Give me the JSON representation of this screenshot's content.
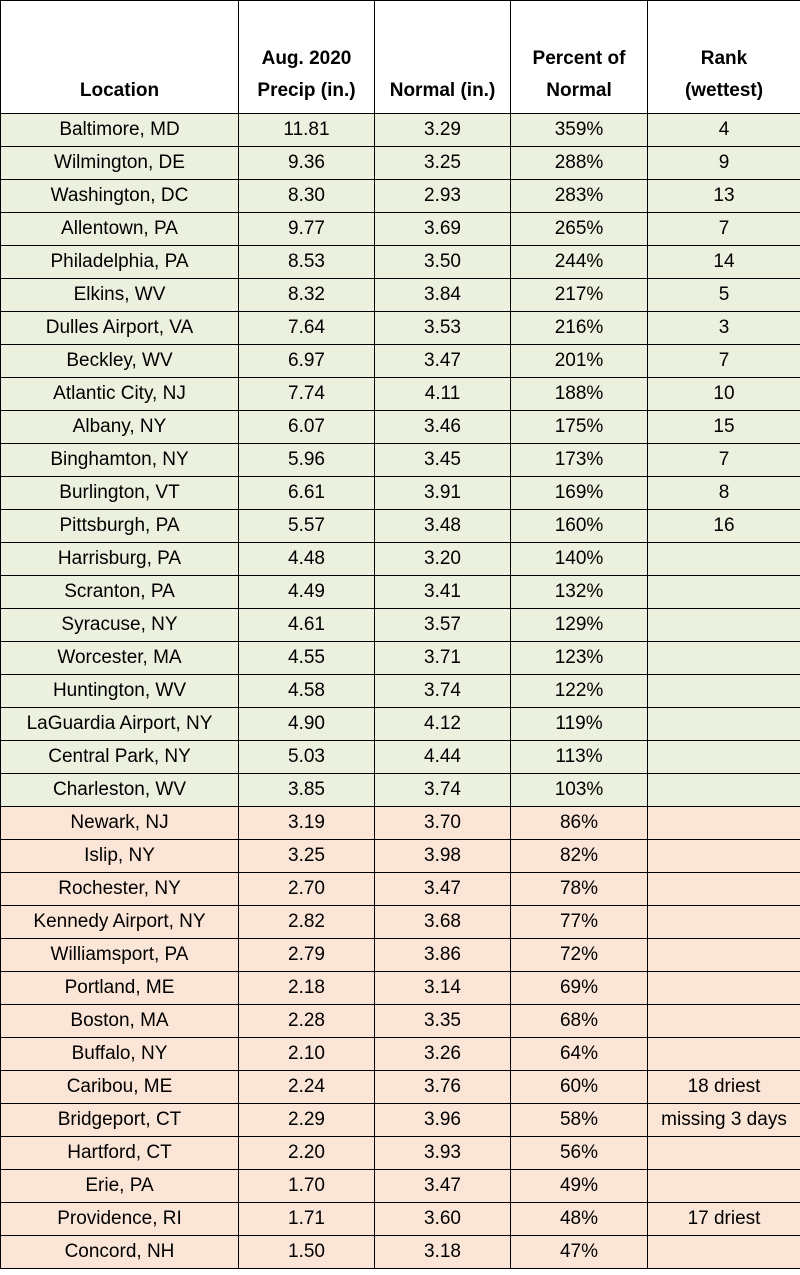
{
  "table": {
    "header": [
      [
        "Location"
      ],
      [
        "Aug. 2020",
        "Precip (in.)"
      ],
      [
        "Normal (in.)"
      ],
      [
        "Percent of",
        "Normal"
      ],
      [
        "Rank",
        "(wettest)"
      ]
    ],
    "above_normal_rows": [
      [
        "Baltimore, MD",
        "11.81",
        "3.29",
        "359%",
        "4"
      ],
      [
        "Wilmington, DE",
        "9.36",
        "3.25",
        "288%",
        "9"
      ],
      [
        "Washington, DC",
        "8.30",
        "2.93",
        "283%",
        "13"
      ],
      [
        "Allentown, PA",
        "9.77",
        "3.69",
        "265%",
        "7"
      ],
      [
        "Philadelphia, PA",
        "8.53",
        "3.50",
        "244%",
        "14"
      ],
      [
        "Elkins, WV",
        "8.32",
        "3.84",
        "217%",
        "5"
      ],
      [
        "Dulles Airport, VA",
        "7.64",
        "3.53",
        "216%",
        "3"
      ],
      [
        "Beckley, WV",
        "6.97",
        "3.47",
        "201%",
        "7"
      ],
      [
        "Atlantic City, NJ",
        "7.74",
        "4.11",
        "188%",
        "10"
      ],
      [
        "Albany, NY",
        "6.07",
        "3.46",
        "175%",
        "15"
      ],
      [
        "Binghamton, NY",
        "5.96",
        "3.45",
        "173%",
        "7"
      ],
      [
        "Burlington, VT",
        "6.61",
        "3.91",
        "169%",
        "8"
      ],
      [
        "Pittsburgh, PA",
        "5.57",
        "3.48",
        "160%",
        "16"
      ],
      [
        "Harrisburg, PA",
        "4.48",
        "3.20",
        "140%"
      ],
      [
        "Scranton, PA",
        "4.49",
        "3.41",
        "132%"
      ],
      [
        "Syracuse, NY",
        "4.61",
        "3.57",
        "129%"
      ],
      [
        "Worcester, MA",
        "4.55",
        "3.71",
        "123%"
      ],
      [
        "Huntington, WV",
        "4.58",
        "3.74",
        "122%"
      ],
      [
        "LaGuardia Airport, NY",
        "4.90",
        "4.12",
        "119%"
      ],
      [
        "Central Park, NY",
        "5.03",
        "4.44",
        "113%"
      ],
      [
        "Charleston, WV",
        "3.85",
        "3.74",
        "103%"
      ]
    ],
    "below_normal_rows": [
      [
        "Newark, NJ",
        "3.19",
        "3.70",
        "86%"
      ],
      [
        "Islip, NY",
        "3.25",
        "3.98",
        "82%"
      ],
      [
        "Rochester, NY",
        "2.70",
        "3.47",
        "78%"
      ],
      [
        "Kennedy Airport, NY",
        "2.82",
        "3.68",
        "77%"
      ],
      [
        "Williamsport, PA",
        "2.79",
        "3.86",
        "72%"
      ],
      [
        "Portland, ME",
        "2.18",
        "3.14",
        "69%"
      ],
      [
        "Boston, MA",
        "2.28",
        "3.35",
        "68%"
      ],
      [
        "Buffalo, NY",
        "2.10",
        "3.26",
        "64%"
      ],
      [
        "Caribou, ME",
        "2.24",
        "3.76",
        "60%",
        "18 driest"
      ],
      [
        "Bridgeport, CT",
        "2.29",
        "3.96",
        "58%",
        "missing 3 days"
      ],
      [
        "Hartford, CT",
        "2.20",
        "3.93",
        "56%"
      ],
      [
        "Erie, PA",
        "1.70",
        "3.47",
        "49%"
      ],
      [
        "Providence, RI",
        "1.71",
        "3.60",
        "48%",
        "17 driest"
      ],
      [
        "Concord, NH",
        "1.50",
        "3.18",
        "47%"
      ]
    ]
  }
}
